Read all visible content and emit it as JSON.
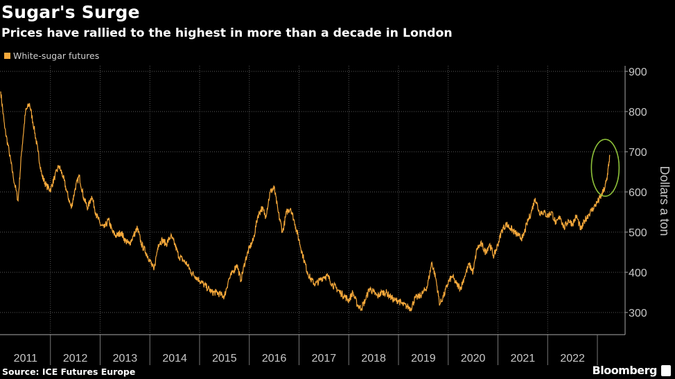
{
  "header": {
    "title": "Sugar's Surge",
    "subtitle": "Prices have rallied to the highest in more than a decade in London"
  },
  "footer": {
    "source": "Source: ICE Futures Europe",
    "brand": "Bloomberg"
  },
  "colors": {
    "series": "#f6a93b",
    "highlight": "#8fc33a",
    "grid": "#5a5a5a"
  },
  "chart_data": {
    "type": "line",
    "title": "Sugar's Surge",
    "subtitle": "Prices have rallied to the highest in more than a decade in London",
    "ylabel": "Dollars a ton",
    "xlabel": "",
    "ylim": [
      250,
      910
    ],
    "xlim": [
      2011.0,
      2023.45
    ],
    "yticks": [
      300,
      400,
      500,
      600,
      700,
      800,
      900
    ],
    "xtick_labels": [
      "2011",
      "2012",
      "2013",
      "2014",
      "2015",
      "2016",
      "2017",
      "2018",
      "2019",
      "2020",
      "2021",
      "2022"
    ],
    "grid": true,
    "legend": {
      "position": "top-left",
      "entries": [
        "White-sugar futures"
      ]
    },
    "annotation": {
      "type": "ellipse",
      "x": 2023.2,
      "y": 660,
      "note": "latest spike highlighted"
    },
    "series": [
      {
        "name": "White-sugar futures",
        "x": [
          2011.0,
          2011.08,
          2011.17,
          2011.25,
          2011.35,
          2011.42,
          2011.5,
          2011.58,
          2011.67,
          2011.75,
          2011.83,
          2011.92,
          2012.0,
          2012.08,
          2012.17,
          2012.25,
          2012.33,
          2012.42,
          2012.5,
          2012.58,
          2012.67,
          2012.75,
          2012.83,
          2012.92,
          2013.0,
          2013.08,
          2013.17,
          2013.25,
          2013.33,
          2013.42,
          2013.5,
          2013.58,
          2013.67,
          2013.75,
          2013.83,
          2013.92,
          2014.0,
          2014.08,
          2014.17,
          2014.25,
          2014.33,
          2014.42,
          2014.5,
          2014.58,
          2014.67,
          2014.75,
          2014.83,
          2014.92,
          2015.0,
          2015.08,
          2015.17,
          2015.25,
          2015.33,
          2015.42,
          2015.5,
          2015.58,
          2015.67,
          2015.75,
          2015.83,
          2015.92,
          2016.0,
          2016.08,
          2016.17,
          2016.25,
          2016.33,
          2016.42,
          2016.5,
          2016.58,
          2016.67,
          2016.75,
          2016.83,
          2016.92,
          2017.0,
          2017.08,
          2017.17,
          2017.25,
          2017.33,
          2017.42,
          2017.5,
          2017.58,
          2017.67,
          2017.75,
          2017.83,
          2017.92,
          2018.0,
          2018.08,
          2018.17,
          2018.25,
          2018.33,
          2018.42,
          2018.5,
          2018.58,
          2018.67,
          2018.75,
          2018.83,
          2018.92,
          2019.0,
          2019.08,
          2019.17,
          2019.25,
          2019.33,
          2019.42,
          2019.5,
          2019.58,
          2019.67,
          2019.75,
          2019.83,
          2019.92,
          2020.0,
          2020.08,
          2020.17,
          2020.25,
          2020.33,
          2020.42,
          2020.5,
          2020.58,
          2020.67,
          2020.75,
          2020.83,
          2020.92,
          2021.0,
          2021.08,
          2021.17,
          2021.25,
          2021.33,
          2021.42,
          2021.5,
          2021.58,
          2021.67,
          2021.75,
          2021.83,
          2021.92,
          2022.0,
          2022.08,
          2022.17,
          2022.25,
          2022.33,
          2022.42,
          2022.5,
          2022.58,
          2022.67,
          2022.75,
          2022.83,
          2022.92,
          2023.0,
          2023.08,
          2023.15,
          2023.2,
          2023.25
        ],
        "values": [
          850,
          760,
          700,
          640,
          578,
          700,
          800,
          820,
          760,
          700,
          640,
          615,
          605,
          635,
          665,
          640,
          600,
          560,
          610,
          640,
          585,
          560,
          590,
          545,
          520,
          510,
          530,
          500,
          490,
          500,
          480,
          470,
          490,
          510,
          470,
          450,
          430,
          405,
          470,
          480,
          470,
          490,
          470,
          440,
          430,
          420,
          400,
          390,
          380,
          370,
          360,
          350,
          350,
          345,
          340,
          380,
          400,
          420,
          380,
          430,
          460,
          480,
          540,
          560,
          540,
          600,
          610,
          550,
          500,
          550,
          560,
          520,
          480,
          440,
          400,
          380,
          370,
          380,
          390,
          390,
          370,
          360,
          350,
          340,
          330,
          350,
          320,
          310,
          330,
          360,
          350,
          340,
          350,
          350,
          340,
          330,
          330,
          320,
          315,
          310,
          335,
          340,
          350,
          365,
          425,
          385,
          320,
          345,
          375,
          390,
          370,
          360,
          390,
          420,
          400,
          460,
          470,
          450,
          470,
          440,
          470,
          505,
          520,
          510,
          500,
          490,
          485,
          520,
          550,
          585,
          550,
          550,
          540,
          550,
          520,
          540,
          510,
          530,
          520,
          540,
          505,
          530,
          545,
          560,
          575,
          590,
          610,
          640,
          690
        ]
      }
    ]
  }
}
